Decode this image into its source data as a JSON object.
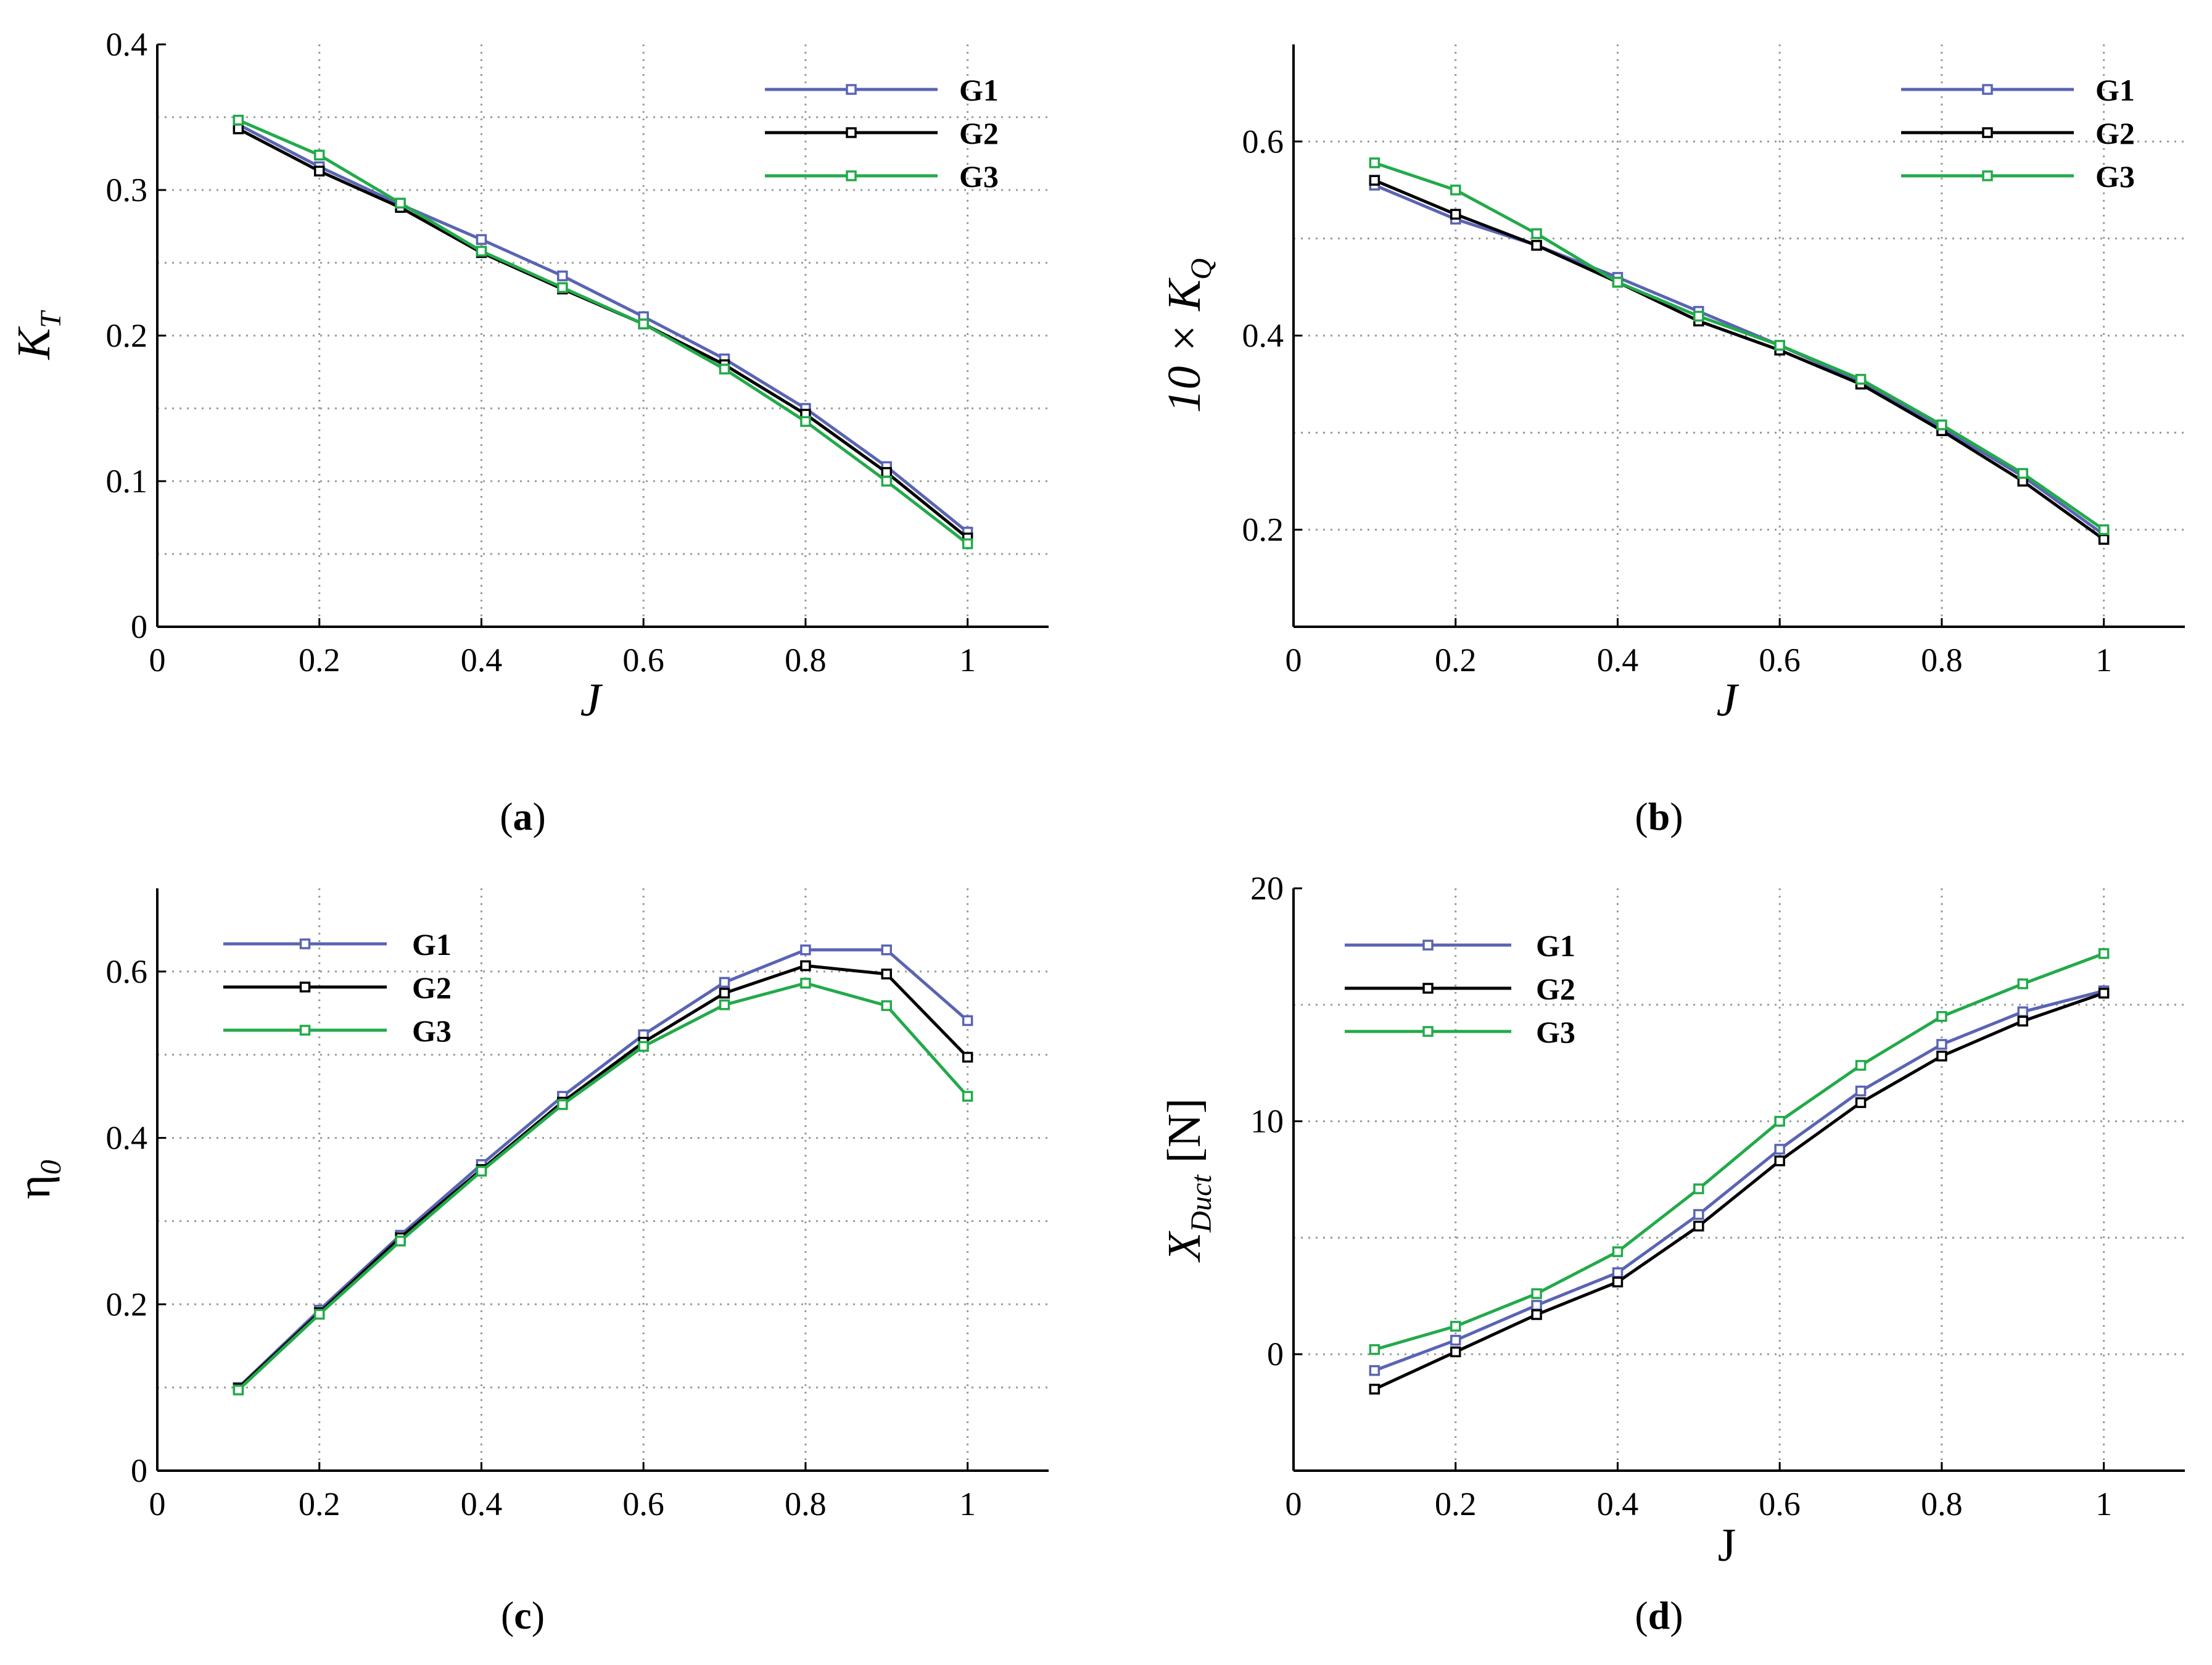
{
  "colors": {
    "G1": "#5a64b4",
    "G2": "#000000",
    "G3": "#22aa4a",
    "grid": "#9a9a9a",
    "axis": "#000000"
  },
  "chart_data": [
    {
      "panel": "a",
      "caption": {
        "open": "(",
        "letter": "a",
        "close": ")"
      },
      "type": "line",
      "xlabel": "J",
      "xlabel_italic": true,
      "ylabel_main": "K",
      "ylabel_sub": "T",
      "ylabel_prefix": "",
      "xlim": [
        0,
        1.1
      ],
      "ylim": [
        0,
        0.4
      ],
      "xticks": [
        0,
        0.2,
        0.4,
        0.6,
        0.8,
        1
      ],
      "xtick_labels": [
        "0",
        "0.2",
        "0.4",
        "0.6",
        "0.8",
        "1"
      ],
      "yticks": [
        0,
        0.1,
        0.2,
        0.3,
        0.4
      ],
      "ytick_labels": [
        "0",
        "0.1",
        "0.2",
        "0.3",
        "0.4"
      ],
      "grid_x": [
        0.2,
        0.4,
        0.6,
        0.8,
        1.0
      ],
      "grid_y": [
        0.05,
        0.1,
        0.15,
        0.2,
        0.25,
        0.3,
        0.35
      ],
      "grid": true,
      "legend_position": "top-right",
      "x": [
        0.1,
        0.2,
        0.3,
        0.4,
        0.5,
        0.6,
        0.7,
        0.8,
        0.9,
        1.0
      ],
      "series": [
        {
          "name": "G1",
          "color": "#5a64b4",
          "values": [
            0.345,
            0.316,
            0.29,
            0.266,
            0.241,
            0.213,
            0.184,
            0.15,
            0.11,
            0.065
          ]
        },
        {
          "name": "G2",
          "color": "#000000",
          "values": [
            0.342,
            0.313,
            0.288,
            0.257,
            0.232,
            0.208,
            0.18,
            0.146,
            0.106,
            0.061
          ]
        },
        {
          "name": "G3",
          "color": "#22aa4a",
          "values": [
            0.348,
            0.324,
            0.291,
            0.258,
            0.233,
            0.208,
            0.177,
            0.141,
            0.1,
            0.057
          ]
        }
      ]
    },
    {
      "panel": "b",
      "caption": {
        "open": "(",
        "letter": "b",
        "close": ")"
      },
      "type": "line",
      "xlabel": "J",
      "xlabel_italic": true,
      "ylabel_main": "K",
      "ylabel_sub": "Q",
      "ylabel_prefix": "10 × ",
      "xlim": [
        0,
        1.1
      ],
      "ylim": [
        0.1,
        0.7
      ],
      "xticks": [
        0,
        0.2,
        0.4,
        0.6,
        0.8,
        1
      ],
      "xtick_labels": [
        "0",
        "0.2",
        "0.4",
        "0.6",
        "0.8",
        "1"
      ],
      "yticks": [
        0.2,
        0.4,
        0.6
      ],
      "ytick_labels": [
        "0.2",
        "0.4",
        "0.6"
      ],
      "grid_x": [
        0.2,
        0.4,
        0.6,
        0.8,
        1.0
      ],
      "grid_y": [
        0.2,
        0.3,
        0.4,
        0.5,
        0.6
      ],
      "grid": true,
      "legend_position": "top-right",
      "x": [
        0.1,
        0.2,
        0.3,
        0.4,
        0.5,
        0.6,
        0.7,
        0.8,
        0.9,
        1.0
      ],
      "series": [
        {
          "name": "G1",
          "color": "#5a64b4",
          "values": [
            0.555,
            0.52,
            0.493,
            0.46,
            0.425,
            0.39,
            0.352,
            0.305,
            0.255,
            0.195
          ]
        },
        {
          "name": "G2",
          "color": "#000000",
          "values": [
            0.56,
            0.525,
            0.493,
            0.455,
            0.415,
            0.385,
            0.35,
            0.302,
            0.25,
            0.19
          ]
        },
        {
          "name": "G3",
          "color": "#22aa4a",
          "values": [
            0.578,
            0.55,
            0.505,
            0.455,
            0.42,
            0.39,
            0.355,
            0.308,
            0.258,
            0.2
          ]
        }
      ]
    },
    {
      "panel": "c",
      "caption": {
        "open": "(",
        "letter": "c",
        "close": ")"
      },
      "type": "line",
      "xlabel": "",
      "xlabel_italic": true,
      "ylabel_main": "η",
      "ylabel_sub": "0",
      "ylabel_prefix": "",
      "xlim": [
        0,
        1.1
      ],
      "ylim": [
        0,
        0.7
      ],
      "xticks": [
        0,
        0.2,
        0.4,
        0.6,
        0.8,
        1
      ],
      "xtick_labels": [
        "0",
        "0.2",
        "0.4",
        "0.6",
        "0.8",
        "1"
      ],
      "yticks": [
        0,
        0.2,
        0.4,
        0.6
      ],
      "ytick_labels": [
        "0",
        "0.2",
        "0.4",
        "0.6"
      ],
      "grid_x": [
        0.2,
        0.4,
        0.6,
        0.8,
        1.0
      ],
      "grid_y": [
        0.1,
        0.2,
        0.3,
        0.4,
        0.5,
        0.6
      ],
      "grid": true,
      "legend_position": "top-left",
      "x": [
        0.1,
        0.2,
        0.3,
        0.4,
        0.5,
        0.6,
        0.7,
        0.8,
        0.9,
        1.0
      ],
      "series": [
        {
          "name": "G1",
          "color": "#5a64b4",
          "values": [
            0.1,
            0.193,
            0.283,
            0.368,
            0.45,
            0.524,
            0.587,
            0.626,
            0.626,
            0.541
          ]
        },
        {
          "name": "G2",
          "color": "#000000",
          "values": [
            0.099,
            0.19,
            0.28,
            0.362,
            0.443,
            0.515,
            0.574,
            0.607,
            0.597,
            0.497
          ]
        },
        {
          "name": "G3",
          "color": "#22aa4a",
          "values": [
            0.097,
            0.188,
            0.276,
            0.36,
            0.44,
            0.51,
            0.56,
            0.586,
            0.559,
            0.45
          ]
        }
      ]
    },
    {
      "panel": "d",
      "caption": {
        "open": "(",
        "letter": "d",
        "close": ")"
      },
      "type": "line",
      "xlabel": "J",
      "xlabel_italic": false,
      "ylabel_main": "X",
      "ylabel_sub": "Duct",
      "ylabel_prefix": "",
      "ylabel_suffix": " [N]",
      "xlim": [
        0,
        1.1
      ],
      "ylim": [
        -5,
        20
      ],
      "xticks": [
        0,
        0.2,
        0.4,
        0.6,
        0.8,
        1
      ],
      "xtick_labels": [
        "0",
        "0.2",
        "0.4",
        "0.6",
        "0.8",
        "1"
      ],
      "yticks": [
        0,
        10,
        20
      ],
      "ytick_labels": [
        "0",
        "10",
        "20"
      ],
      "grid_x": [
        0.2,
        0.4,
        0.6,
        0.8,
        1.0
      ],
      "grid_y": [
        0,
        5,
        10,
        15
      ],
      "grid": true,
      "legend_position": "top-left",
      "x": [
        0.1,
        0.2,
        0.3,
        0.4,
        0.5,
        0.6,
        0.7,
        0.8,
        0.9,
        1.0
      ],
      "series": [
        {
          "name": "G1",
          "color": "#5a64b4",
          "values": [
            -0.7,
            0.6,
            2.1,
            3.5,
            6.0,
            8.8,
            11.3,
            13.3,
            14.7,
            15.6
          ]
        },
        {
          "name": "G2",
          "color": "#000000",
          "values": [
            -1.5,
            0.1,
            1.7,
            3.1,
            5.5,
            8.3,
            10.8,
            12.8,
            14.3,
            15.5
          ]
        },
        {
          "name": "G3",
          "color": "#22aa4a",
          "values": [
            0.2,
            1.2,
            2.6,
            4.4,
            7.1,
            10.0,
            12.4,
            14.5,
            15.9,
            17.2
          ]
        }
      ]
    }
  ]
}
